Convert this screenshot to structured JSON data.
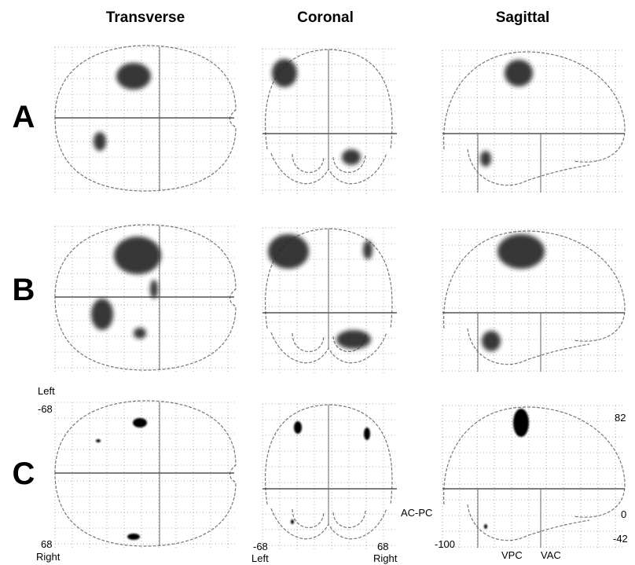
{
  "columns": [
    "Transverse",
    "Coronal",
    "Sagittal"
  ],
  "rows": [
    "A",
    "B",
    "C"
  ],
  "annotations": {
    "transverse": {
      "top_side": "Left",
      "top_value": "-68",
      "bottom_value": "68",
      "bottom_side": "Right"
    },
    "coronal": {
      "left_value": "-68",
      "left_side": "Left",
      "right_value": "68",
      "right_side": "Right",
      "line": "AC-PC"
    },
    "sagittal": {
      "top_value": "82",
      "zero": "0",
      "bottom_value": "-42",
      "left_value": "-100",
      "vpc": "VPC",
      "vac": "VAC"
    }
  }
}
